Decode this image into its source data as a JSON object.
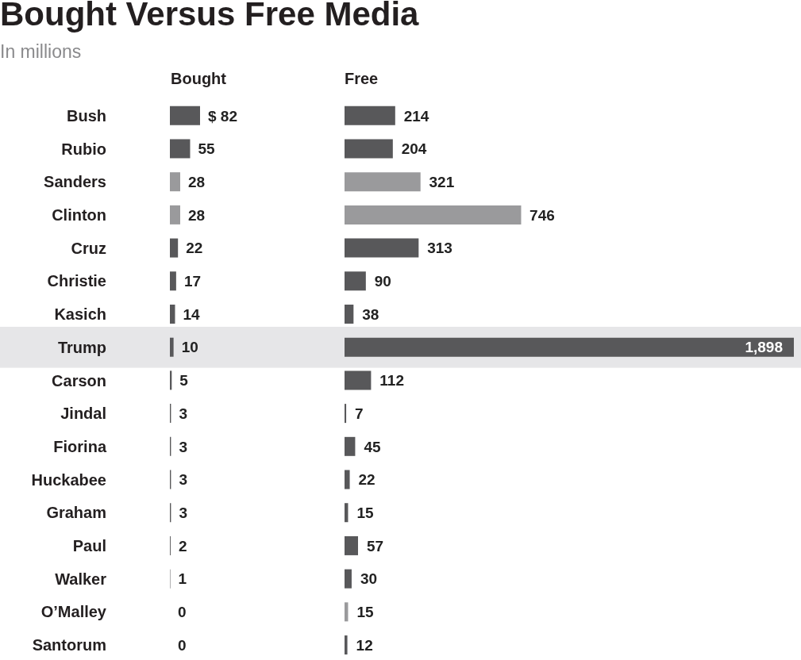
{
  "chart_data": [
    {
      "type": "bar",
      "orientation": "horizontal",
      "title": "Bought Versus Free Media",
      "subtitle": "In millions",
      "xlabel": "Bought",
      "categories": [
        "Bush",
        "Rubio",
        "Sanders",
        "Clinton",
        "Cruz",
        "Christie",
        "Kasich",
        "Trump",
        "Carson",
        "Jindal",
        "Fiorina",
        "Huckabee",
        "Graham",
        "Paul",
        "Walker",
        "O’Malley",
        "Santorum"
      ],
      "values": [
        82,
        55,
        28,
        28,
        22,
        17,
        14,
        10,
        5,
        3,
        3,
        3,
        3,
        2,
        1,
        0,
        0
      ],
      "value_labels": [
        "$ 82",
        "55",
        "28",
        "28",
        "22",
        "17",
        "14",
        "10",
        "5",
        "3",
        "3",
        "3",
        "3",
        "2",
        "1",
        "0",
        "0"
      ],
      "colors": [
        "#58585a",
        "#58585a",
        "#9a9a9c",
        "#9a9a9c",
        "#58585a",
        "#58585a",
        "#58585a",
        "#58585a",
        "#58585a",
        "#58585a",
        "#58585a",
        "#58585a",
        "#58585a",
        "#58585a",
        "#58585a",
        "#9a9a9c",
        "#58585a"
      ],
      "bands": [
        {
          "axis": "y",
          "from": "Trump",
          "to": "Trump",
          "color": "#e6e6e8"
        }
      ]
    },
    {
      "type": "bar",
      "orientation": "horizontal",
      "xlabel": "Free",
      "tick_labels": false,
      "categories": [
        "Bush",
        "Rubio",
        "Sanders",
        "Clinton",
        "Cruz",
        "Christie",
        "Kasich",
        "Trump",
        "Carson",
        "Jindal",
        "Fiorina",
        "Huckabee",
        "Graham",
        "Paul",
        "Walker",
        "O’Malley",
        "Santorum"
      ],
      "values": [
        214,
        204,
        321,
        746,
        313,
        90,
        38,
        1898,
        112,
        7,
        45,
        22,
        15,
        57,
        30,
        15,
        12
      ],
      "value_labels": [
        "214",
        "204",
        "321",
        "746",
        "313",
        "90",
        "38",
        "1,898",
        "112",
        "7",
        "45",
        "22",
        "15",
        "57",
        "30",
        "15",
        "12"
      ],
      "colors": [
        "#58585a",
        "#58585a",
        "#9a9a9c",
        "#9a9a9c",
        "#58585a",
        "#58585a",
        "#58585a",
        "#58585a",
        "#58585a",
        "#58585a",
        "#58585a",
        "#58585a",
        "#58585a",
        "#58585a",
        "#58585a",
        "#9a9a9c",
        "#58585a"
      ],
      "bands": [
        {
          "axis": "y",
          "from": "Trump",
          "to": "Trump",
          "color": "#e6e6e8"
        }
      ]
    }
  ]
}
